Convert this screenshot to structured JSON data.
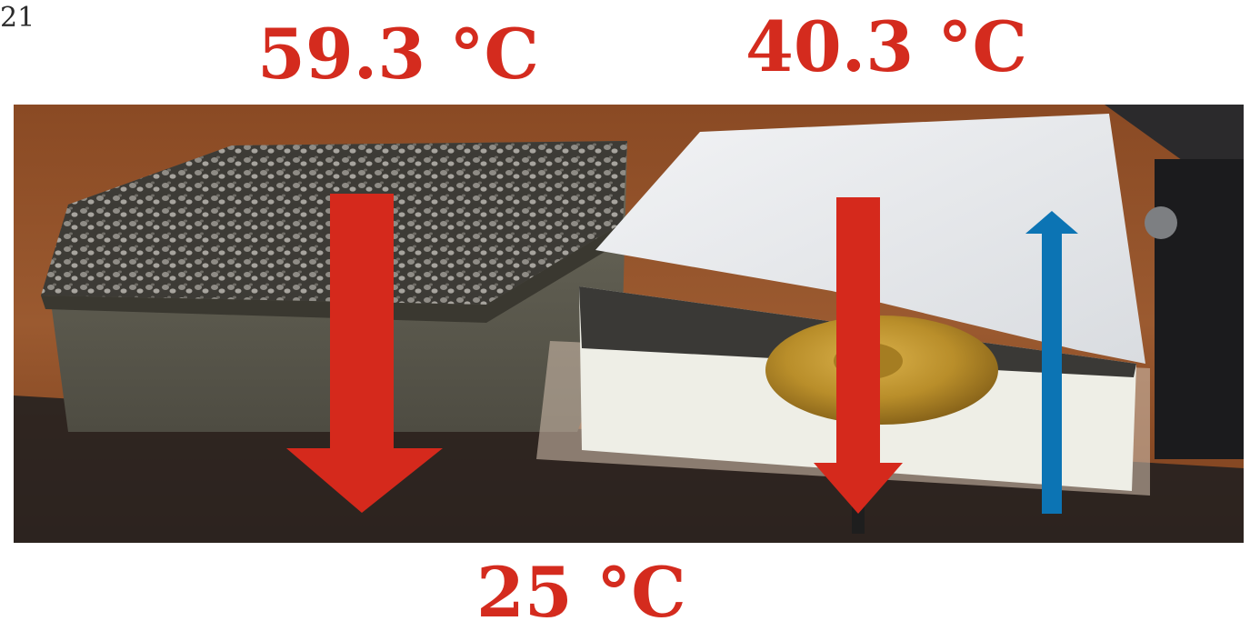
{
  "slide": {
    "page_number": "21"
  },
  "labels": {
    "left_top_temperature": "59.3 °C",
    "right_top_temperature": "40.3 °C",
    "bottom_temperature": "25 °C"
  },
  "photo": {
    "left_sample": "gravel-covered mineral wool roof sample",
    "right_sample": "white-membrane foam insulation roof sample with golden fastener disc",
    "surface": "wooden table"
  },
  "colors": {
    "label_red": "#d42b1e",
    "arrow_red": "#d5291c",
    "arrow_blue": "#0c74b4"
  }
}
